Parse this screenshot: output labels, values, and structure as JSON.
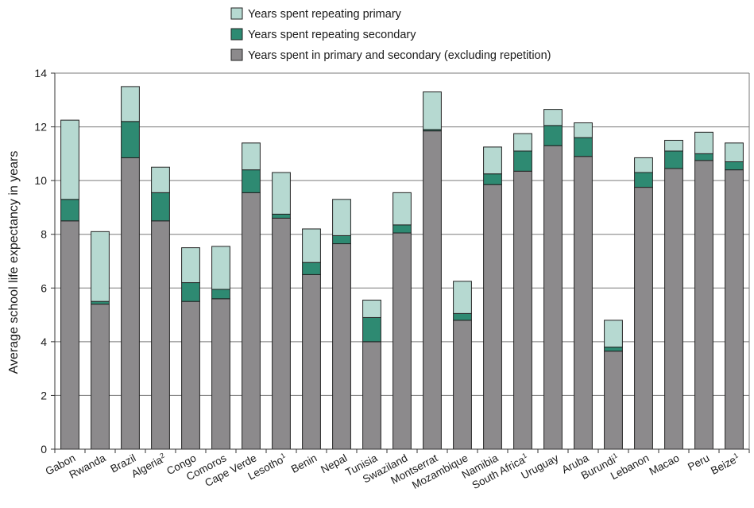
{
  "chart_data": {
    "type": "bar",
    "stacked": true,
    "title": "",
    "xlabel": "",
    "ylabel": "Average school life expectancy in years",
    "ylim": [
      0,
      14
    ],
    "yticks": [
      0,
      2,
      4,
      6,
      8,
      10,
      12,
      14
    ],
    "grid": true,
    "legend_position": "top",
    "categories": [
      {
        "name": "Gabon",
        "sup": ""
      },
      {
        "name": "Rwanda",
        "sup": ""
      },
      {
        "name": "Brazil",
        "sup": ""
      },
      {
        "name": "Algeria",
        "sup": "2"
      },
      {
        "name": "Congo",
        "sup": ""
      },
      {
        "name": "Comoros",
        "sup": ""
      },
      {
        "name": "Cape Verde",
        "sup": ""
      },
      {
        "name": "Lesotho",
        "sup": "1"
      },
      {
        "name": "Benin",
        "sup": ""
      },
      {
        "name": "Nepal",
        "sup": ""
      },
      {
        "name": "Tunisia",
        "sup": ""
      },
      {
        "name": "Swaziland",
        "sup": ""
      },
      {
        "name": "Montserrat",
        "sup": ""
      },
      {
        "name": "Mozambique",
        "sup": ""
      },
      {
        "name": "Namibia",
        "sup": ""
      },
      {
        "name": "South Africa",
        "sup": "1"
      },
      {
        "name": "Uruguay",
        "sup": ""
      },
      {
        "name": "Aruba",
        "sup": ""
      },
      {
        "name": "Burundi",
        "sup": "1"
      },
      {
        "name": "Lebanon",
        "sup": ""
      },
      {
        "name": "Macao",
        "sup": ""
      },
      {
        "name": "Peru",
        "sup": ""
      },
      {
        "name": "Beize",
        "sup": "1"
      }
    ],
    "series": [
      {
        "name": "Years spent in primary and secondary (excluding repetition)",
        "color": "#8c8a8c",
        "values": [
          8.5,
          5.4,
          10.85,
          8.5,
          5.5,
          5.6,
          9.55,
          8.6,
          6.5,
          7.65,
          4.0,
          8.05,
          11.85,
          4.8,
          9.85,
          10.35,
          11.3,
          10.9,
          3.65,
          9.75,
          10.45,
          10.75,
          10.4
        ]
      },
      {
        "name": "Years spent repeating secondary",
        "color": "#2e8a72",
        "values": [
          0.8,
          0.1,
          1.35,
          1.05,
          0.7,
          0.35,
          0.85,
          0.15,
          0.45,
          0.3,
          0.9,
          0.3,
          0.05,
          0.25,
          0.4,
          0.75,
          0.75,
          0.7,
          0.15,
          0.55,
          0.65,
          0.25,
          0.3
        ]
      },
      {
        "name": "Years spent repeating primary",
        "color": "#b6d9d1",
        "values": [
          2.95,
          2.6,
          1.3,
          0.95,
          1.3,
          1.6,
          1.0,
          1.55,
          1.25,
          1.35,
          0.65,
          1.2,
          1.4,
          1.2,
          1.0,
          0.65,
          0.6,
          0.55,
          1.0,
          0.55,
          0.4,
          0.8,
          0.7
        ]
      }
    ],
    "legend_order": [
      2,
      1,
      0
    ]
  }
}
